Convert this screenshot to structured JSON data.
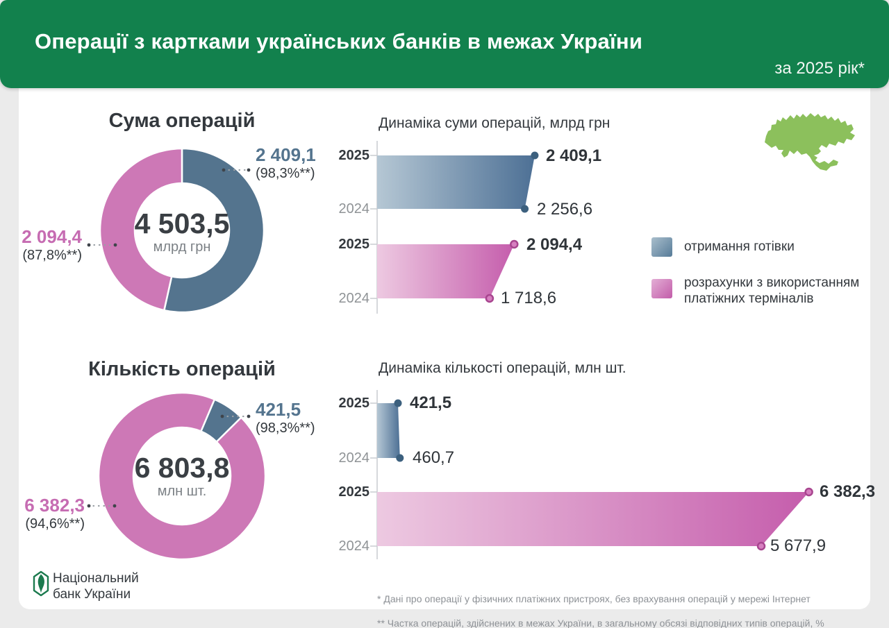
{
  "header": {
    "title": "Операції з картками українських банків в межах України",
    "subtitle": "за 2025 рік*"
  },
  "colors": {
    "green_header": "#12814d",
    "map_green": "#8cc05c",
    "blue": "#54748e",
    "blue_gradient_light": "#b5c7d4",
    "blue_gradient_dark": "#4d7095",
    "blue_marker": "#3c607e",
    "pink": "#cd78b6",
    "pink_gradient_light": "#edc9e1",
    "pink_gradient_dark": "#c55dac",
    "pink_marker_fill": "#d77fc0",
    "pink_marker_stroke": "#a8458f",
    "text_dark": "#33383d",
    "text_muted": "#8f9396",
    "axis": "#c9ccd0",
    "leader": "#9aa0a5",
    "leader_dot": "#3f444a"
  },
  "legend": {
    "items": [
      {
        "label": "отримання готівки",
        "color": "blue"
      },
      {
        "label": "розрахунки з використанням\nплатіжних терміналів",
        "color": "pink"
      }
    ]
  },
  "chart_data": [
    {
      "id": "sum_donut",
      "type": "pie",
      "title": "Сума операцій",
      "center": {
        "value": "4 503,5",
        "unit": "млрд грн"
      },
      "total": 4503.5,
      "slices": [
        {
          "series": "отримання готівки",
          "color": "blue",
          "value": 2409.1,
          "label": "2 409,1",
          "share": "(98,3%**)"
        },
        {
          "series": "розрахунки з використанням платіжних терміналів",
          "color": "pink",
          "value": 2094.4,
          "label": "2 094,4",
          "share": "(87,8%**)"
        }
      ]
    },
    {
      "id": "sum_dynamics",
      "type": "area",
      "title": "Динаміка суми операцій, млрд грн",
      "categories": [
        "2025",
        "2024"
      ],
      "xlim": [
        0,
        2500
      ],
      "series": [
        {
          "name": "отримання готівки",
          "color": "blue",
          "values": [
            2409.1,
            2256.6
          ],
          "labels": [
            "2 409,1",
            "2 256,6"
          ]
        },
        {
          "name": "розрахунки з використанням платіжних терміналів",
          "color": "pink",
          "values": [
            2094.4,
            1718.6
          ],
          "labels": [
            "2 094,4",
            "1 718,6"
          ]
        }
      ]
    },
    {
      "id": "count_donut",
      "type": "pie",
      "title": "Кількість операцій",
      "center": {
        "value": "6 803,8",
        "unit": "млн шт."
      },
      "total": 6803.8,
      "slices": [
        {
          "series": "отримання готівки",
          "color": "blue",
          "value": 421.5,
          "label": "421,5",
          "share": "(98,3%**)"
        },
        {
          "series": "розрахунки з використанням платіжних терміналів",
          "color": "pink",
          "value": 6382.3,
          "label": "6 382,3",
          "share": "(94,6%**)"
        }
      ]
    },
    {
      "id": "count_dynamics",
      "type": "area",
      "title": "Динаміка кількості операцій, млн шт.",
      "categories": [
        "2025",
        "2024"
      ],
      "xlim": [
        0,
        6500
      ],
      "series": [
        {
          "name": "отримання готівки",
          "color": "blue",
          "values": [
            421.5,
            460.7
          ],
          "labels": [
            "421,5",
            "460,7"
          ]
        },
        {
          "name": "розрахунки з використанням платіжних терміналів",
          "color": "pink",
          "values": [
            6382.3,
            5677.9
          ],
          "labels": [
            "6 382,3",
            "5 677,9"
          ]
        }
      ]
    }
  ],
  "footer": {
    "notes": [
      "* Дані про операції у фізичних платіжних пристроях, без врахування операцій у мережі Інтернет",
      "** Частка операцій, здійснених в межах України, в загальному обсязі відповідних типів операцій, %"
    ]
  },
  "logo": {
    "text": "Національний\nбанк України"
  }
}
